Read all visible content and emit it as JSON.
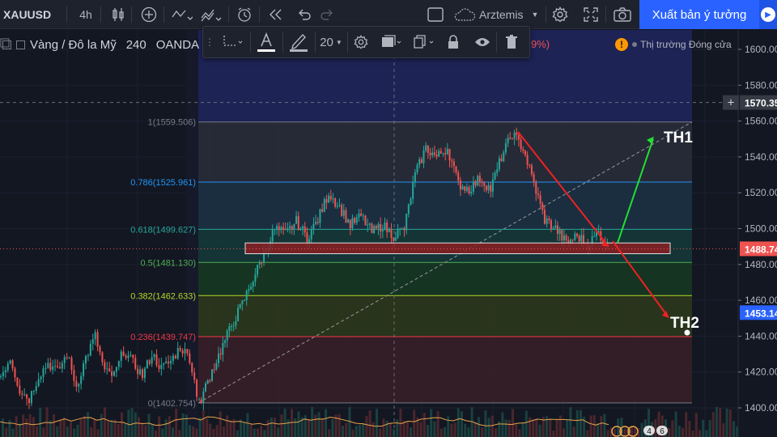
{
  "toolbar": {
    "symbol": "XAUUSD",
    "interval": "4h",
    "user": "Arztemis",
    "publish_label": "Xuất bản ý tưởng"
  },
  "legend": {
    "title": "Vàng / Đô la Mỹ",
    "interval": "240",
    "exchange": "OANDA",
    "change_fragment": "9%)"
  },
  "drawing_toolbar": {
    "font_size": "20"
  },
  "market_status": "Thị trường Đóng cửa",
  "colors": {
    "accent": "#2962ff",
    "up": "#26a69a",
    "down": "#ef5350",
    "fib_1": "#787b86",
    "fib_786": "#2196f3",
    "fib_618": "#26a69a",
    "fib_5": "#4caf50",
    "fib_382": "#b5d627",
    "fib_236": "#f23645",
    "fib_0": "#787b86"
  },
  "chart_data": {
    "type": "candlestick",
    "symbol": "XAUUSD",
    "ylim": [
      1393,
      1612
    ],
    "price_ticks": [
      1600,
      1580,
      1560,
      1540,
      1520,
      1500,
      1480,
      1460,
      1440,
      1420,
      1400
    ],
    "price_tick_labels": [
      "1600.00",
      "1580.00",
      "1560.00",
      "1540.00",
      "1520.00",
      "1500.00",
      "1480.00",
      "1460.00",
      "1440.00",
      "1420.00",
      "1400.00"
    ],
    "crosshair_price": 1570.35,
    "crosshair_label": "1570.35",
    "last_price": 1488.74,
    "last_price_label": "1488.74",
    "marker_price": 1453.14,
    "marker_label": "1453.14",
    "fibonacci": [
      {
        "level": "1",
        "price": 1559.506,
        "label": "1(1559.506)"
      },
      {
        "level": "0.786",
        "price": 1525.961,
        "label": "0.786(1525.961)"
      },
      {
        "level": "0.618",
        "price": 1499.627,
        "label": "0.618(1499.627)"
      },
      {
        "level": "0.5",
        "price": 1481.13,
        "label": "0.5(1481.130)"
      },
      {
        "level": "0.382",
        "price": 1462.633,
        "label": "0.382(1462.633)"
      },
      {
        "level": "0.236",
        "price": 1439.747,
        "label": "0.236(1439.747)"
      },
      {
        "level": "0",
        "price": 1402.754,
        "label": "0(1402.754)"
      }
    ],
    "zone": {
      "top": 1492,
      "bottom": 1486
    },
    "scenarios": [
      {
        "label": "TH1",
        "from_price": 1492,
        "to_price": 1550,
        "color": "#22dd33"
      },
      {
        "label": "TH2",
        "from_price": 1493,
        "to_price": 1451,
        "color": "#ee2222"
      }
    ],
    "path_points": [
      1402,
      1418,
      1432,
      1446,
      1458,
      1472,
      1486,
      1500,
      1497,
      1504,
      1495,
      1505,
      1520,
      1512,
      1502,
      1507,
      1498,
      1502,
      1496,
      1500,
      1530,
      1545,
      1540,
      1545,
      1525,
      1522,
      1528,
      1522,
      1540,
      1553,
      1545,
      1525,
      1505,
      1500,
      1492,
      1496,
      1491,
      1498,
      1488
    ],
    "pre_path_points": [
      1418,
      1428,
      1410,
      1405,
      1418,
      1425,
      1420,
      1430,
      1412,
      1428,
      1440,
      1420,
      1418,
      1432,
      1425,
      1418,
      1430,
      1422,
      1426,
      1434,
      1428,
      1402
    ],
    "volume_scenario_labels": [
      "4",
      "6"
    ]
  }
}
